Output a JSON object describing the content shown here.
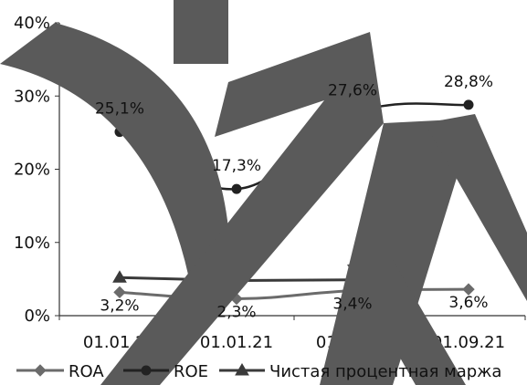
{
  "chart_data": {
    "type": "line",
    "categories": [
      "01.01.20",
      "01.01.21",
      "01.08.21",
      "01.09.21"
    ],
    "series": [
      {
        "name": "ROA",
        "values": [
          3.2,
          2.3,
          3.4,
          3.6
        ],
        "labels": [
          "3,2%",
          "2,3%",
          "3,4%",
          "3,6%"
        ],
        "color": "#6b6b6b",
        "marker": "diamond"
      },
      {
        "name": "ROE",
        "values": [
          25.1,
          17.3,
          27.6,
          28.8
        ],
        "labels": [
          "25,1%",
          "17,3%",
          "27,6%",
          "28,8%"
        ],
        "color": "#222222",
        "marker": "circle"
      },
      {
        "name": "Чистая процентная маржа",
        "values": [
          5.2,
          4.8,
          4.9,
          null
        ],
        "labels": [],
        "color": "#3a3a3a",
        "marker": "triangle"
      }
    ],
    "y_ticks": [
      "0%",
      "10%",
      "20%",
      "30%",
      "40%"
    ],
    "ylim": [
      0,
      40
    ],
    "grid": false,
    "legend_position": "bottom",
    "title": "",
    "xlabel": "",
    "ylabel": ""
  },
  "decor": {
    "watermark_color": "#5a5a5a"
  }
}
